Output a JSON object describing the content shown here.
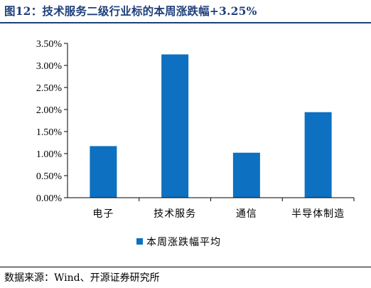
{
  "title": "图12：技术服务二级行业标的本周涨跌幅+3.25%",
  "source": "数据来源：Wind、开源证券研究所",
  "colors": {
    "bar": "#0e70c0",
    "title": "#1f3f7a",
    "axis": "#000000"
  },
  "chart_data": {
    "type": "bar",
    "categories": [
      "电子",
      "技术服务",
      "通信",
      "半导体制造"
    ],
    "series": [
      {
        "name": "本周涨跌幅平均",
        "values": [
          1.17,
          3.25,
          1.02,
          1.94
        ]
      }
    ],
    "ylim": [
      0,
      3.5
    ],
    "yticks": [
      0,
      0.5,
      1.0,
      1.5,
      2.0,
      2.5,
      3.0,
      3.5
    ],
    "ytick_labels": [
      "0.00%",
      "0.50%",
      "1.00%",
      "1.50%",
      "2.00%",
      "2.50%",
      "3.00%",
      "3.50%"
    ],
    "grid": false,
    "legend": "bottom-center"
  }
}
